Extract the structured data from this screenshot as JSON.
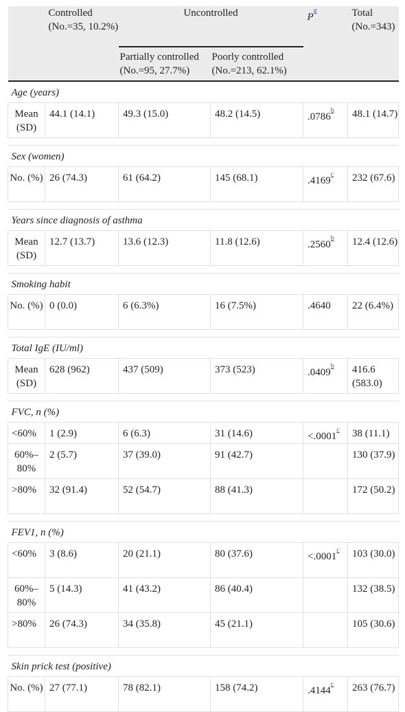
{
  "header": {
    "controlled": "Controlled (No.=35, 10.2%)",
    "uncontrolled": "Uncontrolled",
    "p_label": "P",
    "p_sup": "a",
    "total": "Total (No.=343)",
    "partially": "Partially controlled (No.=95, 27.7%)",
    "poorly": "Poorly controlled (No.=213, 62.1%)"
  },
  "sections": [
    {
      "title": "Age (years)",
      "rows": [
        {
          "label": "Mean (SD)",
          "controlled": "44.1 (14.1)",
          "partially": "49.3 (15.0)",
          "poorly": "48.2 (14.5)",
          "p": ".0786",
          "p_sup": "b",
          "total": "48.1 (14.7)"
        }
      ]
    },
    {
      "title": "Sex (women)",
      "rows": [
        {
          "label": "No. (%)",
          "controlled": "26 (74.3)",
          "partially": "61 (64.2)",
          "poorly": "145 (68.1)",
          "p": ".4169",
          "p_sup": "c",
          "total": "232 (67.6)"
        }
      ]
    },
    {
      "title": "Years since diagnosis of asthma",
      "rows": [
        {
          "label": "Mean (SD)",
          "controlled": "12.7 (13.7)",
          "partially": "13.6 (12.3)",
          "poorly": "11.8 (12.6)",
          "p": ".2560",
          "p_sup": "b",
          "total": "12.4 (12.6)"
        }
      ]
    },
    {
      "title": "Smoking habit",
      "rows": [
        {
          "label": "No. (%)",
          "controlled": "0 (0.0)",
          "partially": "6 (6.3%)",
          "poorly": "16 (7.5%)",
          "p": ".4640",
          "p_sup": "",
          "total": "22 (6.4%)"
        }
      ]
    },
    {
      "title": "Total IgE (IU/ml)",
      "rows": [
        {
          "label": "Mean (SD)",
          "controlled": "628 (962)",
          "partially": "437 (509)",
          "poorly": "373 (523)",
          "p": ".0409",
          "p_sup": "b",
          "total": "416.6 (583.0)"
        }
      ]
    },
    {
      "title": "FVC, n (%)",
      "rows": [
        {
          "label": "<60%",
          "controlled": "1 (2.9)",
          "partially": "6 (6.3)",
          "poorly": "31 (14.6)",
          "p": "<.0001",
          "p_sup": "c",
          "total": "38 (11.1)"
        },
        {
          "label": "60%–80%",
          "controlled": "2 (5.7)",
          "partially": "37 (39.0)",
          "poorly": "91 (42.7)",
          "p": "",
          "p_sup": "",
          "total": "130 (37.9)"
        },
        {
          "label": ">80%",
          "controlled": "32 (91.4)",
          "partially": "52 (54.7)",
          "poorly": "88 (41.3)",
          "p": "",
          "p_sup": "",
          "total": "172 (50.2)"
        }
      ]
    },
    {
      "title": "FEV1, n (%)",
      "rows": [
        {
          "label": "<60%",
          "controlled": "3 (8.6)",
          "partially": "20 (21.1)",
          "poorly": "80 (37.6)",
          "p": "<.0001",
          "p_sup": "c",
          "total": "103 (30.0)"
        },
        {
          "label": "60%–80%",
          "controlled": "5 (14.3)",
          "partially": "41 (43.2)",
          "poorly": "86 (40.4)",
          "p": "",
          "p_sup": "",
          "total": "132 (38.5)"
        },
        {
          "label": ">80%",
          "controlled": "26 (74.3)",
          "partially": "34 (35.8)",
          "poorly": "45 (21.1)",
          "p": "",
          "p_sup": "",
          "total": "105 (30.6)"
        }
      ]
    },
    {
      "title": "Skin prick test (positive)",
      "rows": [
        {
          "label": "No. (%)",
          "controlled": "27 (77.1)",
          "partially": "78 (82.1)",
          "poorly": "158 (74.2)",
          "p": ".4144",
          "p_sup": "c",
          "total": "263 (76.7)"
        }
      ]
    }
  ]
}
